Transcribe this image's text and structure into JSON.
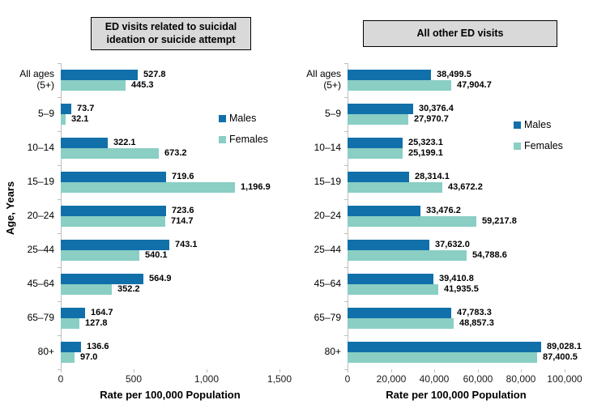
{
  "ylabel": "Age, Years",
  "colors": {
    "males": "#1170aa",
    "females": "#8acec4",
    "title_box_bg": "#d9d9d9",
    "title_box_border": "#000000",
    "axis": "#bfbfbf",
    "text": "#000000"
  },
  "chart_data": [
    {
      "type": "bar",
      "orientation": "horizontal",
      "title": "ED visits related to suicidal ideation or suicide attempt",
      "xlabel": "Rate per 100,000 Population",
      "ylabel": "Age, Years",
      "categories": [
        "All ages\n(5+)",
        "5–9",
        "10–14",
        "15–19",
        "20–24",
        "25–44",
        "45–64",
        "65–79",
        "80+"
      ],
      "series": [
        {
          "name": "Males",
          "values": [
            527.8,
            73.7,
            322.1,
            719.6,
            723.6,
            743.1,
            564.9,
            164.7,
            136.6
          ],
          "labels": [
            "527.8",
            "73.7",
            "322.1",
            "719.6",
            "723.6",
            "743.1",
            "564.9",
            "164.7",
            "136.6"
          ]
        },
        {
          "name": "Females",
          "values": [
            445.3,
            32.1,
            673.2,
            1196.9,
            714.7,
            540.1,
            352.2,
            127.8,
            97.0
          ],
          "labels": [
            "445.3",
            "32.1",
            "673.2",
            "1,196.9",
            "714.7",
            "540.1",
            "352.2",
            "127.8",
            "97.0"
          ]
        }
      ],
      "xlim": [
        0,
        1500
      ],
      "xtick_values": [
        0,
        500,
        1000,
        1500
      ],
      "xticks": [
        "0",
        "500",
        "1,000",
        "1,500"
      ],
      "legend_position": "right-inside",
      "grid": false
    },
    {
      "type": "bar",
      "orientation": "horizontal",
      "title": "All other ED visits",
      "xlabel": "Rate per 100,000 Population",
      "ylabel": "Age, Years",
      "categories": [
        "All ages\n(5+)",
        "5–9",
        "10–14",
        "15–19",
        "20–24",
        "25–44",
        "45–64",
        "65–79",
        "80+"
      ],
      "series": [
        {
          "name": "Males",
          "values": [
            38499.5,
            30376.4,
            25323.1,
            28314.1,
            33476.2,
            37632.0,
            39410.8,
            47783.3,
            89028.1
          ],
          "labels": [
            "38,499.5",
            "30,376.4",
            "25,323.1",
            "28,314.1",
            "33,476.2",
            "37,632.0",
            "39,410.8",
            "47,783.3",
            "89,028.1"
          ]
        },
        {
          "name": "Females",
          "values": [
            47904.7,
            27970.7,
            25199.1,
            43672.2,
            59217.8,
            54788.6,
            41935.5,
            48857.3,
            87400.5
          ],
          "labels": [
            "47,904.7",
            "27,970.7",
            "25,199.1",
            "43,672.2",
            "59,217.8",
            "54,788.6",
            "41,935.5",
            "48,857.3",
            "87,400.5"
          ]
        }
      ],
      "xlim": [
        0,
        100000
      ],
      "xtick_values": [
        0,
        20000,
        40000,
        60000,
        80000,
        100000
      ],
      "xticks": [
        "0",
        "20,000",
        "40,000",
        "60,000",
        "80,000",
        "100,000"
      ],
      "legend_position": "right-inside",
      "grid": false
    }
  ]
}
